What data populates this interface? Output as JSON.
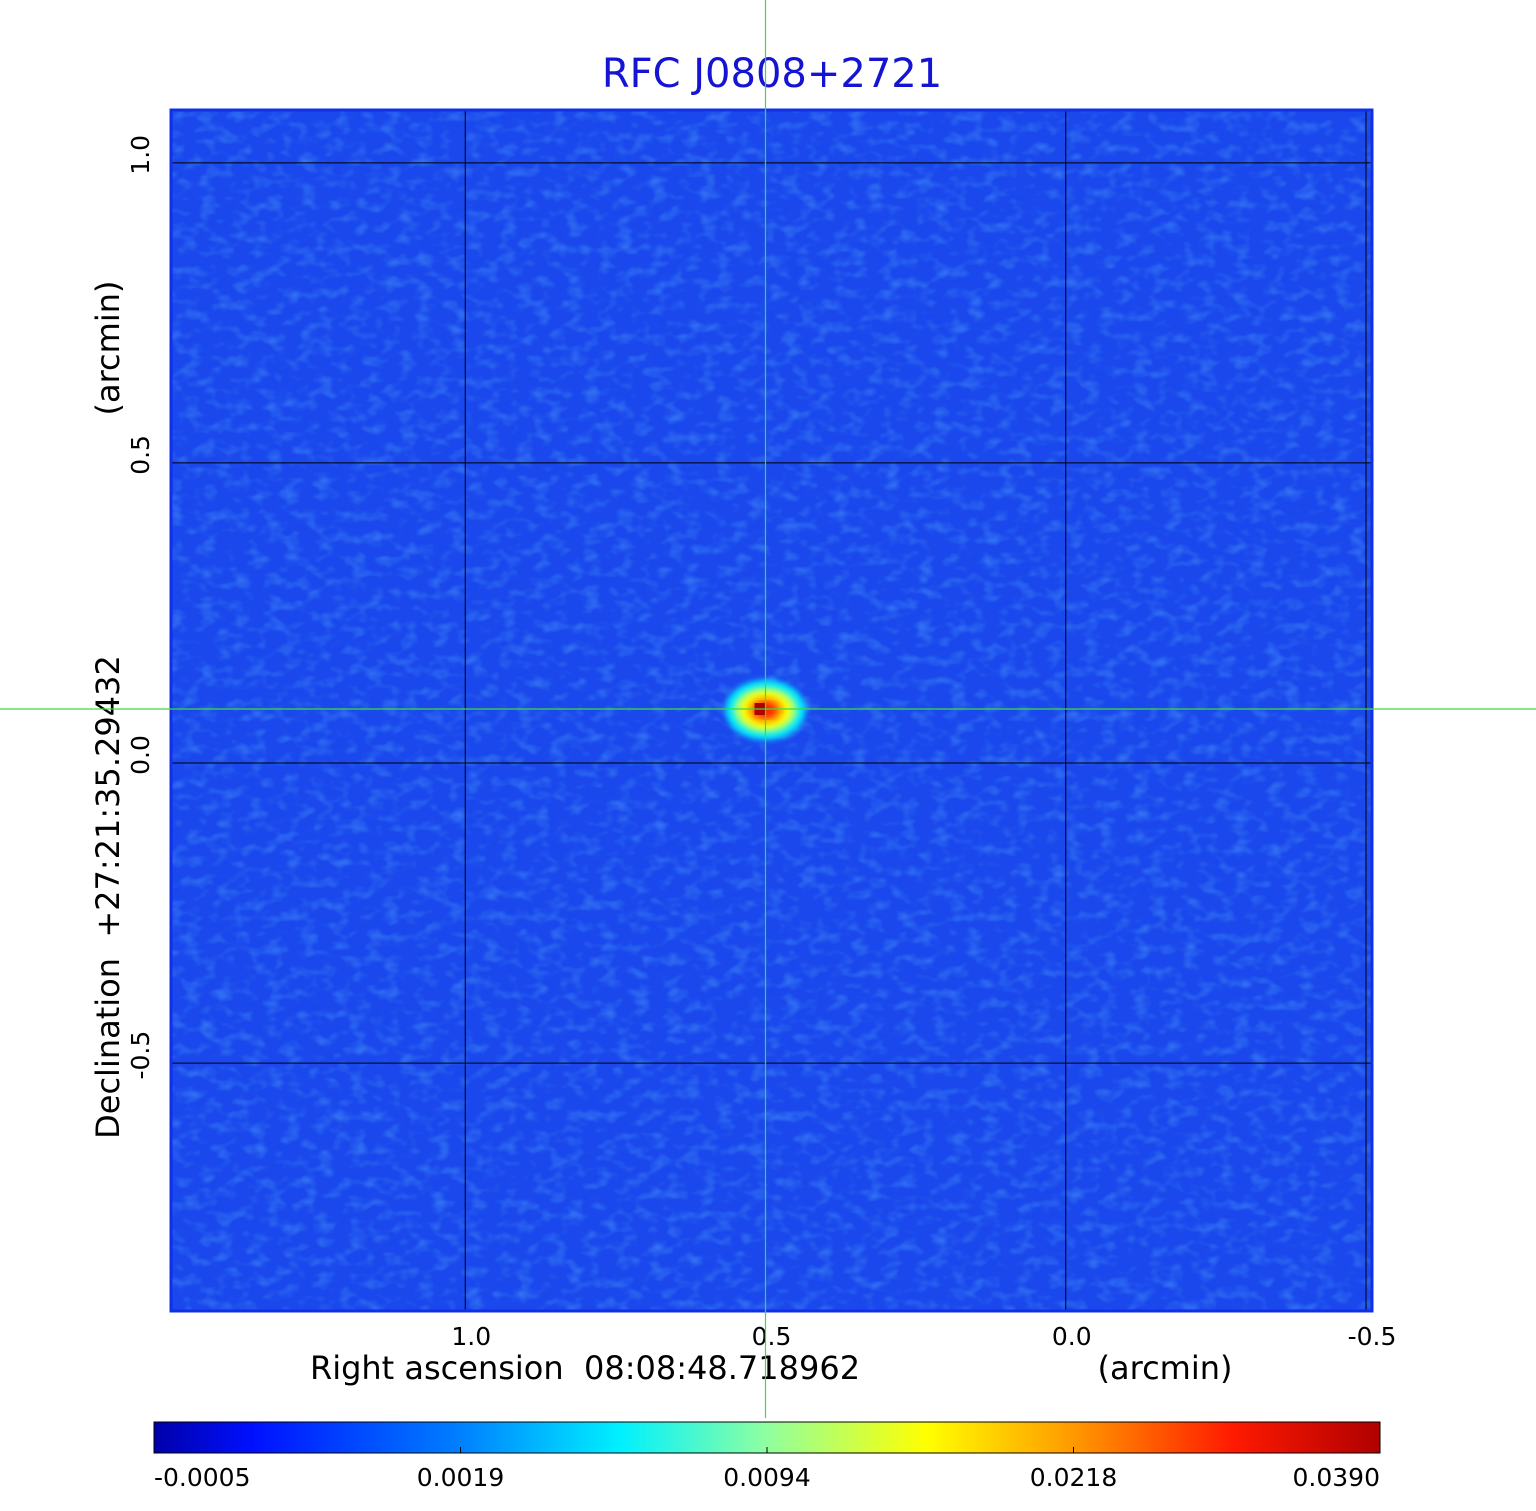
{
  "chart_data": {
    "type": "image",
    "title": "RFC J0808+2721",
    "xlabel": "Right ascension  08:08:48.718962",
    "xunit": "(arcmin)",
    "ylabel": "Declination  +27:21:35.29432",
    "yunit": "(arcmin)",
    "xlim": [
      1.49,
      -0.51
    ],
    "ylim": [
      -0.913,
      1.088
    ],
    "xticks": [
      {
        "value": 1,
        "label": "1.0"
      },
      0.5,
      {
        "value": 0,
        "label": "0.0"
      },
      -0.5
    ],
    "yticks": [
      {
        "value": 1,
        "label": "1.0"
      },
      0.5,
      {
        "value": 0,
        "label": "0.0"
      },
      -0.5
    ],
    "grid": true,
    "source": {
      "x": 0.5,
      "y": 0.09
    },
    "colorbar_ticks": [
      -0.0005,
      0.0019,
      0.0094,
      0.0218,
      {
        "value": 0.039,
        "label": "0.0390"
      }
    ]
  }
}
